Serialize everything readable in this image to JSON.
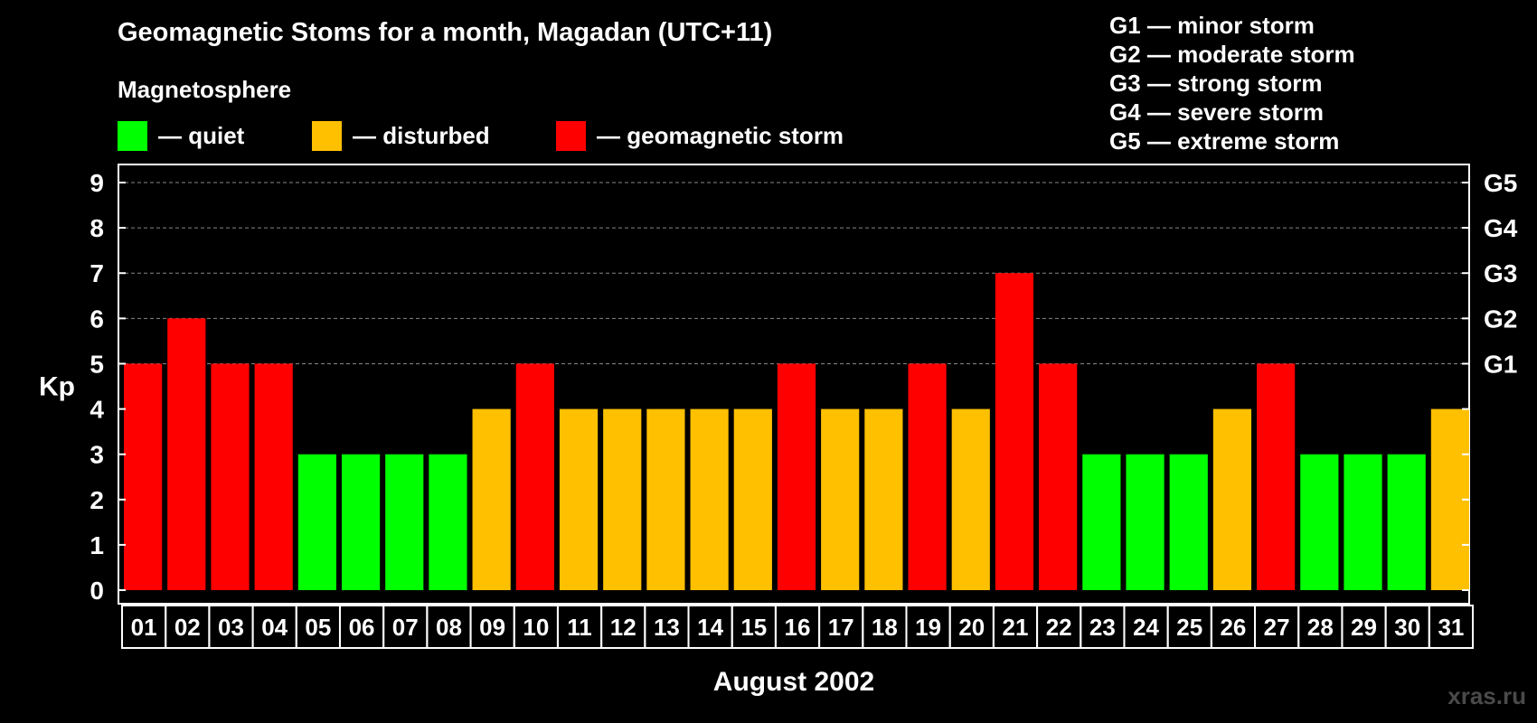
{
  "colors": {
    "quiet": "#00ff00",
    "disturbed": "#ffc000",
    "storm": "#ff0000",
    "background": "#000000",
    "grid": "#888888"
  },
  "header": {
    "title": "Geomagnetic Stoms for a month, Magadan (UTC+11)",
    "subtitle": "Magnetosphere"
  },
  "legend": [
    {
      "status": "quiet",
      "label": "— quiet"
    },
    {
      "status": "disturbed",
      "label": "— disturbed"
    },
    {
      "status": "storm",
      "label": "— geomagnetic storm"
    }
  ],
  "g_scale": [
    "G1 — minor storm",
    "G2 — moderate storm",
    "G3 — strong storm",
    "G4 — severe storm",
    "G5 — extreme storm"
  ],
  "watermark": "xras.ru",
  "chart_data": {
    "type": "bar",
    "ylabel": "Kp",
    "xlabel": "August 2002",
    "ylim": [
      0,
      9
    ],
    "yticks": [
      "0",
      "1",
      "2",
      "3",
      "4",
      "5",
      "6",
      "7",
      "8",
      "9"
    ],
    "right_ticks": [
      {
        "value": 5,
        "label": "G1"
      },
      {
        "value": 6,
        "label": "G2"
      },
      {
        "value": 7,
        "label": "G3"
      },
      {
        "value": 8,
        "label": "G4"
      },
      {
        "value": 9,
        "label": "G5"
      }
    ],
    "grid_dashed_from": 5,
    "categories": [
      "01",
      "02",
      "03",
      "04",
      "05",
      "06",
      "07",
      "08",
      "09",
      "10",
      "11",
      "12",
      "13",
      "14",
      "15",
      "16",
      "17",
      "18",
      "19",
      "20",
      "21",
      "22",
      "23",
      "24",
      "25",
      "26",
      "27",
      "28",
      "29",
      "30",
      "31"
    ],
    "values": [
      5,
      6,
      5,
      5,
      3,
      3,
      3,
      3,
      4,
      5,
      4,
      4,
      4,
      4,
      4,
      5,
      4,
      4,
      5,
      4,
      7,
      5,
      3,
      3,
      3,
      4,
      5,
      3,
      3,
      3,
      4
    ],
    "status": [
      "storm",
      "storm",
      "storm",
      "storm",
      "quiet",
      "quiet",
      "quiet",
      "quiet",
      "disturbed",
      "storm",
      "disturbed",
      "disturbed",
      "disturbed",
      "disturbed",
      "disturbed",
      "storm",
      "disturbed",
      "disturbed",
      "storm",
      "disturbed",
      "storm",
      "storm",
      "quiet",
      "quiet",
      "quiet",
      "disturbed",
      "storm",
      "quiet",
      "quiet",
      "quiet",
      "disturbed"
    ]
  }
}
